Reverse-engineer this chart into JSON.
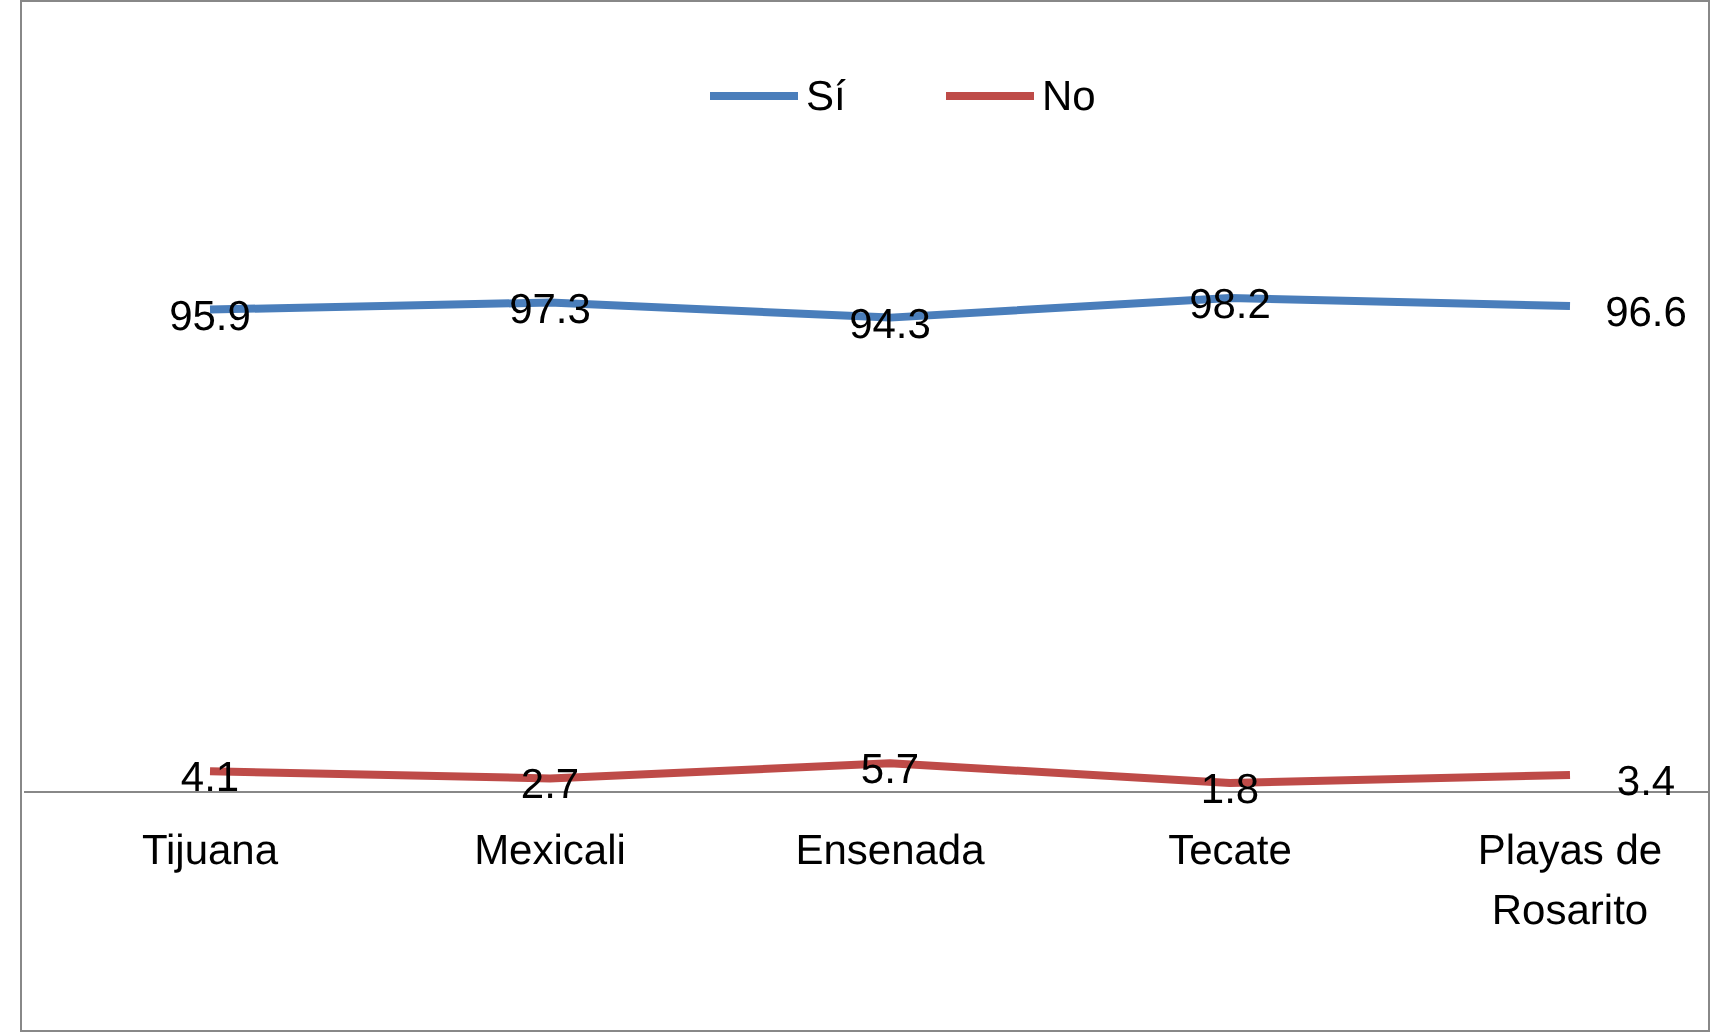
{
  "chart_data": {
    "type": "line",
    "categories": [
      "Tijuana",
      "Mexicali",
      "Ensenada",
      "Tecate",
      "Playas de Rosarito"
    ],
    "series": [
      {
        "name": "Sí",
        "color": "#4a7ebb",
        "values": [
          95.9,
          97.3,
          94.3,
          98.2,
          96.6
        ]
      },
      {
        "name": "No",
        "color": "#be4b48",
        "values": [
          4.1,
          2.7,
          5.7,
          1.8,
          3.4
        ]
      }
    ],
    "data_labels": true,
    "legend": "top",
    "marker": "none",
    "line_style": "solid"
  }
}
